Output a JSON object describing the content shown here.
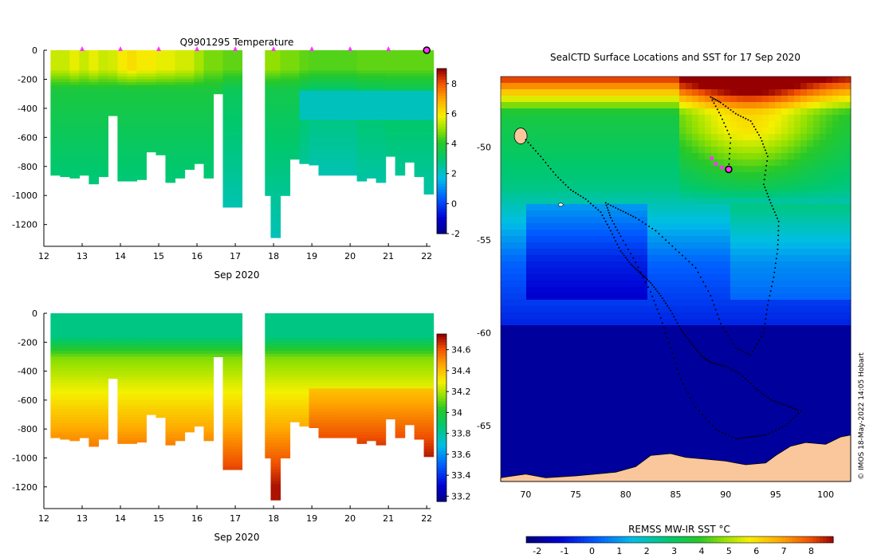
{
  "chart_data": [
    {
      "type": "heatmap",
      "title": "Q9901295  Temperature",
      "xlabel": "Sep 2020",
      "ylabel": "",
      "x_ticks": [
        "12",
        "13",
        "14",
        "15",
        "16",
        "17",
        "18",
        "19",
        "20",
        "21",
        "22"
      ],
      "xlim": [
        12,
        22.1
      ],
      "y_ticks": [
        "0",
        "-200",
        "-400",
        "-600",
        "-800",
        "-1000",
        "-1200"
      ],
      "y_tick_values": [
        0,
        -200,
        -400,
        -600,
        -800,
        -1000,
        -1200
      ],
      "ylim": [
        -1350,
        0
      ],
      "colorbar_ticks": [
        "-2",
        "0",
        "2",
        "4",
        "6",
        "8"
      ],
      "colorbar_values": [
        -2,
        0,
        2,
        4,
        6,
        8
      ],
      "clim": [
        -2,
        9
      ],
      "profile_markers_x": [
        13,
        14,
        15,
        16,
        17,
        18,
        19,
        20,
        21
      ],
      "latest_marker_x": 22,
      "profiles": [
        {
          "x": 12.3,
          "depth": -860,
          "surface": 5.5,
          "deep": 3.0
        },
        {
          "x": 12.55,
          "depth": -870,
          "surface": 5.5,
          "deep": 3.0
        },
        {
          "x": 12.8,
          "depth": -880,
          "surface": 5.8,
          "deep": 3.0
        },
        {
          "x": 13.05,
          "depth": -860,
          "surface": 5.5,
          "deep": 3.0
        },
        {
          "x": 13.3,
          "depth": -920,
          "surface": 5.8,
          "deep": 3.0
        },
        {
          "x": 13.55,
          "depth": -870,
          "surface": 5.5,
          "deep": 3.0
        },
        {
          "x": 13.8,
          "depth": -450,
          "surface": 5.6,
          "deep": 3.0
        },
        {
          "x": 14.05,
          "depth": -900,
          "surface": 6.0,
          "deep": 3.0
        },
        {
          "x": 14.3,
          "depth": -900,
          "surface": 6.2,
          "deep": 3.0
        },
        {
          "x": 14.55,
          "depth": -890,
          "surface": 6.0,
          "deep": 3.0
        },
        {
          "x": 14.8,
          "depth": -700,
          "surface": 6.0,
          "deep": 3.0
        },
        {
          "x": 15.05,
          "depth": -720,
          "surface": 5.8,
          "deep": 3.0
        },
        {
          "x": 15.3,
          "depth": -910,
          "surface": 5.8,
          "deep": 3.0
        },
        {
          "x": 15.55,
          "depth": -880,
          "surface": 5.6,
          "deep": 3.0
        },
        {
          "x": 15.8,
          "depth": -820,
          "surface": 5.6,
          "deep": 3.0
        },
        {
          "x": 16.05,
          "depth": -780,
          "surface": 5.2,
          "deep": 3.0
        },
        {
          "x": 16.3,
          "depth": -880,
          "surface": 4.8,
          "deep": 3.0
        },
        {
          "x": 16.55,
          "depth": -300,
          "surface": 4.8,
          "deep": 3.0
        },
        {
          "x": 16.8,
          "depth": -1080,
          "surface": 4.6,
          "deep": 2.6
        },
        {
          "x": 17.05,
          "depth": -1080,
          "surface": 4.6,
          "deep": 2.6
        },
        {
          "x": 17.9,
          "depth": -1000,
          "surface": 5.0,
          "deep": 2.8
        },
        {
          "x": 18.05,
          "depth": -1290,
          "surface": 5.0,
          "deep": 2.8
        },
        {
          "x": 18.3,
          "depth": -1000,
          "surface": 4.8,
          "deep": 2.8
        },
        {
          "x": 18.55,
          "depth": -750,
          "surface": 4.8,
          "deep": 2.8
        },
        {
          "x": 18.8,
          "depth": -780,
          "surface": 4.6,
          "deep": 2.5
        },
        {
          "x": 19.05,
          "depth": -790,
          "surface": 4.5,
          "deep": 2.3
        },
        {
          "x": 19.3,
          "depth": -860,
          "surface": 4.5,
          "deep": 2.3
        },
        {
          "x": 19.55,
          "depth": -860,
          "surface": 4.5,
          "deep": 2.3
        },
        {
          "x": 19.8,
          "depth": -860,
          "surface": 4.5,
          "deep": 2.3
        },
        {
          "x": 20.05,
          "depth": -860,
          "surface": 4.5,
          "deep": 2.3
        },
        {
          "x": 20.3,
          "depth": -900,
          "surface": 4.6,
          "deep": 2.5
        },
        {
          "x": 20.55,
          "depth": -880,
          "surface": 4.6,
          "deep": 2.5
        },
        {
          "x": 20.8,
          "depth": -910,
          "surface": 4.6,
          "deep": 2.5
        },
        {
          "x": 21.05,
          "depth": -730,
          "surface": 4.6,
          "deep": 2.6
        },
        {
          "x": 21.3,
          "depth": -860,
          "surface": 4.6,
          "deep": 2.6
        },
        {
          "x": 21.55,
          "depth": -770,
          "surface": 4.6,
          "deep": 2.6
        },
        {
          "x": 21.8,
          "depth": -870,
          "surface": 4.6,
          "deep": 2.6
        },
        {
          "x": 22.05,
          "depth": -990,
          "surface": 4.6,
          "deep": 2.6
        }
      ]
    },
    {
      "type": "heatmap",
      "title": "",
      "xlabel": "Sep 2020",
      "ylabel": "",
      "x_ticks": [
        "12",
        "13",
        "14",
        "15",
        "16",
        "17",
        "18",
        "19",
        "20",
        "21",
        "22"
      ],
      "xlim": [
        12,
        22.1
      ],
      "y_ticks": [
        "0",
        "-200",
        "-400",
        "-600",
        "-800",
        "-1000",
        "-1200"
      ],
      "y_tick_values": [
        0,
        -200,
        -400,
        -600,
        -800,
        -1000,
        -1200
      ],
      "ylim": [
        -1350,
        0
      ],
      "colorbar_ticks": [
        "33.2",
        "33.4",
        "33.6",
        "33.8",
        "34",
        "34.2",
        "34.4",
        "34.6"
      ],
      "colorbar_values": [
        33.2,
        33.4,
        33.6,
        33.8,
        34.0,
        34.2,
        34.4,
        34.6
      ],
      "clim": [
        33.15,
        34.75
      ],
      "profiles_from": "same as temperature panel"
    },
    {
      "type": "heatmap",
      "title": "SealCTD Surface Locations and SST for 17 Sep 2020",
      "xlabel": "",
      "ylabel": "",
      "x_ticks": [
        "70",
        "75",
        "80",
        "85",
        "90",
        "95",
        "100"
      ],
      "x_tick_values": [
        70,
        75,
        80,
        85,
        90,
        95,
        100
      ],
      "xlim": [
        67.5,
        102.5
      ],
      "y_ticks": [
        "-50",
        "-55",
        "-60",
        "-65"
      ],
      "y_tick_values": [
        -50,
        -55,
        -60,
        -65
      ],
      "ylim": [
        -68,
        -46.2
      ],
      "colorbar_label": "REMSS MW-IR SST °C",
      "colorbar_ticks": [
        "-2",
        "-1",
        "0",
        "1",
        "2",
        "3",
        "4",
        "5",
        "6",
        "7",
        "8"
      ],
      "colorbar_values": [
        -2,
        -1,
        0,
        1,
        2,
        3,
        4,
        5,
        6,
        7,
        8
      ],
      "clim": [
        -2.4,
        8.8
      ],
      "credit": "© IMOS 18-May-2022 14:05 Hobart",
      "current_position": {
        "lon": 90.3,
        "lat": -51.2
      }
    }
  ]
}
